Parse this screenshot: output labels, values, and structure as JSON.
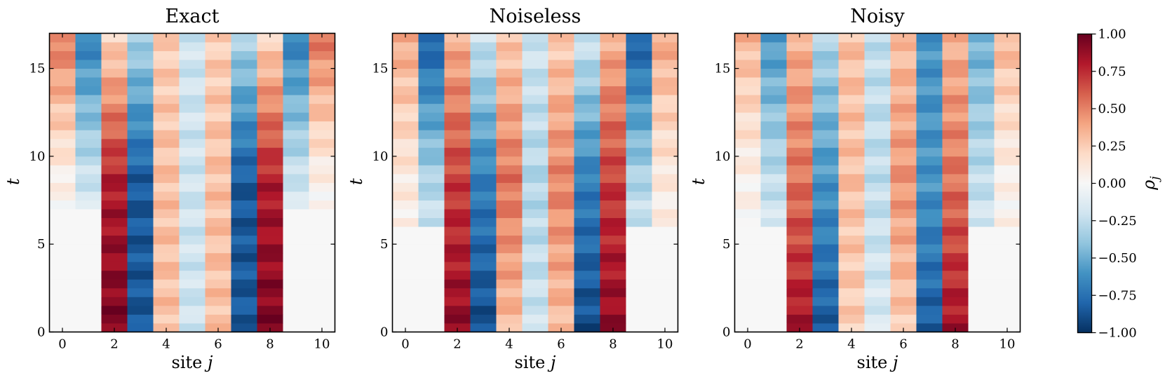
{
  "chart_data": {
    "type": "heatmap",
    "colormap": "RdBu_r",
    "panels": [
      {
        "title": "Exact",
        "xlabel_prefix": "site ",
        "xlabel_var": "j",
        "ylabel": "t",
        "x_range": [
          -0.5,
          10.5
        ],
        "y_range": [
          0,
          17
        ],
        "x_ticks": [
          "0",
          "2",
          "4",
          "6",
          "8",
          "10"
        ],
        "y_ticks": [
          "0",
          "5",
          "10",
          "15"
        ],
        "t_rows": 34,
        "t_step": 0.5,
        "front_t": 7.0,
        "site_values_early": [
          0.0,
          0.0,
          0.95,
          -0.85,
          0.3,
          -0.2,
          0.3,
          -0.85,
          0.95,
          0.0,
          0.0
        ],
        "site_values_late": [
          0.55,
          -0.7,
          0.2,
          -0.3,
          0.25,
          -0.2,
          0.25,
          -0.3,
          0.2,
          -0.7,
          0.55
        ],
        "site_values_mid": [
          0.05,
          -0.2,
          0.8,
          -0.85,
          0.3,
          -0.2,
          0.3,
          -0.85,
          0.8,
          -0.2,
          0.05
        ]
      },
      {
        "title": "Noiseless",
        "xlabel_prefix": "site ",
        "xlabel_var": "j",
        "ylabel": "t",
        "x_range": [
          -0.5,
          10.5
        ],
        "y_range": [
          0,
          17
        ],
        "x_ticks": [
          "0",
          "2",
          "4",
          "6",
          "8",
          "10"
        ],
        "y_ticks": [
          "0",
          "5",
          "10",
          "15"
        ],
        "t_rows": 34,
        "t_step": 0.5,
        "front_t": 6.0,
        "site_values_early": [
          0.0,
          0.0,
          0.9,
          -0.9,
          0.3,
          -0.2,
          0.3,
          -0.9,
          0.9,
          0.0,
          0.0
        ],
        "site_values_late": [
          0.4,
          -0.85,
          0.35,
          -0.2,
          0.25,
          -0.2,
          0.25,
          -0.2,
          0.35,
          -0.85,
          0.4
        ],
        "site_values_mid": [
          0.1,
          -0.3,
          0.7,
          -0.7,
          0.55,
          -0.3,
          0.5,
          -0.7,
          0.7,
          -0.3,
          0.1
        ]
      },
      {
        "title": "Noisy",
        "xlabel_prefix": "site ",
        "xlabel_var": "j",
        "ylabel": "t",
        "x_range": [
          -0.5,
          10.5
        ],
        "y_range": [
          0,
          17
        ],
        "x_ticks": [
          "0",
          "2",
          "4",
          "6",
          "8",
          "10"
        ],
        "y_ticks": [
          "0",
          "5",
          "10",
          "15"
        ],
        "t_rows": 34,
        "t_step": 0.5,
        "front_t": 6.0,
        "site_values_early": [
          0.0,
          0.0,
          0.85,
          -0.85,
          0.25,
          -0.15,
          0.25,
          -0.85,
          0.85,
          0.0,
          0.0
        ],
        "site_values_late": [
          0.35,
          -0.6,
          0.35,
          -0.3,
          0.3,
          -0.25,
          0.3,
          -0.6,
          0.35,
          -0.5,
          0.35
        ],
        "site_values_mid": [
          0.05,
          -0.25,
          0.55,
          -0.6,
          0.3,
          -0.25,
          0.45,
          -0.6,
          0.55,
          -0.25,
          0.05
        ]
      }
    ],
    "colorbar": {
      "label_var": "ρ",
      "label_sub": "j",
      "range": [
        -1.0,
        1.0
      ],
      "ticks": [
        "1.00",
        "0.75",
        "0.50",
        "0.25",
        "0.00",
        "−0.25",
        "−0.50",
        "−0.75",
        "−1.00"
      ]
    }
  }
}
